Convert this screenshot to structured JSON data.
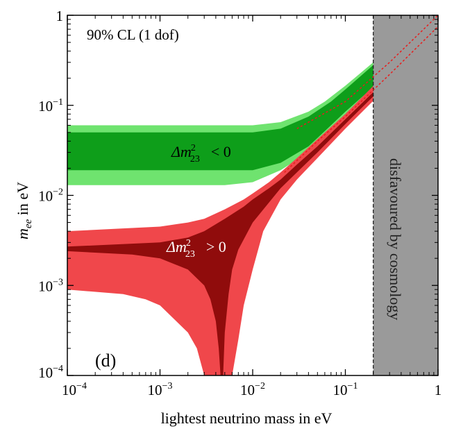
{
  "chart_data": {
    "type": "area",
    "panel_label": "(d)",
    "confidence_note": "90% CL (1 dof)",
    "xlabel": "lightest neutrino mass in eV",
    "ylabel": {
      "symbol": "m",
      "subscript": "ee",
      "suffix": " in eV"
    },
    "x_scale": "log",
    "y_scale": "log",
    "xlim": [
      0.0001,
      1
    ],
    "ylim": [
      0.0001,
      1
    ],
    "x_ticks": [
      {
        "value": 0.0001,
        "base": "10",
        "exp": "−4"
      },
      {
        "value": 0.001,
        "base": "10",
        "exp": "−3"
      },
      {
        "value": 0.01,
        "base": "10",
        "exp": "−2"
      },
      {
        "value": 0.1,
        "base": "10",
        "exp": "−1"
      },
      {
        "value": 1,
        "base": "1",
        "exp": ""
      }
    ],
    "y_ticks": [
      {
        "value": 0.0001,
        "base": "10",
        "exp": "−4"
      },
      {
        "value": 0.001,
        "base": "10",
        "exp": "−3"
      },
      {
        "value": 0.01,
        "base": "10",
        "exp": "−2"
      },
      {
        "value": 0.1,
        "base": "10",
        "exp": "−1"
      },
      {
        "value": 1,
        "base": "1",
        "exp": ""
      }
    ],
    "colors": {
      "inverted_outer": "#6fe36f",
      "inverted_inner": "#0e9e1a",
      "normal_outer": "#f0474b",
      "normal_inner": "#900c0c",
      "disfavoured": "#9a9a9a",
      "best_fit": "#e81c1c"
    },
    "regions": [
      {
        "name": "inverted-hierarchy-outer",
        "label": {
          "prefix": "Δm",
          "sup": "2",
          "sub": "23",
          "relation": "< 0"
        },
        "color_key": "inverted_outer",
        "upper": [
          [
            0.0001,
            0.06
          ],
          [
            0.01,
            0.06
          ],
          [
            0.02,
            0.065
          ],
          [
            0.04,
            0.085
          ],
          [
            0.06,
            0.11
          ],
          [
            0.1,
            0.165
          ],
          [
            0.2,
            0.3
          ],
          [
            0.4,
            0.55
          ],
          [
            0.7,
            0.8
          ],
          [
            1,
            1
          ]
        ],
        "lower": [
          [
            0.0001,
            0.013
          ],
          [
            0.005,
            0.013
          ],
          [
            0.01,
            0.014
          ],
          [
            0.02,
            0.019
          ],
          [
            0.04,
            0.03
          ],
          [
            0.07,
            0.05
          ],
          [
            0.1,
            0.07
          ],
          [
            0.2,
            0.13
          ],
          [
            0.5,
            0.3
          ],
          [
            1,
            0.55
          ]
        ]
      },
      {
        "name": "inverted-hierarchy-inner",
        "label": null,
        "color_key": "inverted_inner",
        "upper": [
          [
            0.0001,
            0.05
          ],
          [
            0.01,
            0.05
          ],
          [
            0.02,
            0.055
          ],
          [
            0.04,
            0.075
          ],
          [
            0.07,
            0.11
          ],
          [
            0.1,
            0.15
          ],
          [
            0.2,
            0.28
          ],
          [
            0.4,
            0.5
          ],
          [
            0.7,
            0.75
          ],
          [
            1,
            0.95
          ]
        ],
        "lower": [
          [
            0.0001,
            0.019
          ],
          [
            0.01,
            0.019
          ],
          [
            0.02,
            0.023
          ],
          [
            0.04,
            0.035
          ],
          [
            0.07,
            0.06
          ],
          [
            0.1,
            0.085
          ],
          [
            0.2,
            0.16
          ],
          [
            0.5,
            0.38
          ],
          [
            1,
            0.7
          ]
        ]
      },
      {
        "name": "normal-hierarchy-outer",
        "label": {
          "prefix": "Δm",
          "sup": "2",
          "sub": "23",
          "relation": "> 0"
        },
        "color_key": "normal_outer",
        "upper": [
          [
            0.0001,
            0.004
          ],
          [
            0.001,
            0.0045
          ],
          [
            0.002,
            0.005
          ],
          [
            0.003,
            0.0055
          ],
          [
            0.005,
            0.007
          ],
          [
            0.008,
            0.009
          ],
          [
            0.01,
            0.0105
          ],
          [
            0.015,
            0.014
          ],
          [
            0.02,
            0.018
          ],
          [
            0.03,
            0.026
          ],
          [
            0.05,
            0.042
          ],
          [
            0.1,
            0.08
          ],
          [
            0.3,
            0.25
          ],
          [
            1,
            0.9
          ]
        ],
        "lower": [
          [
            0.0001,
            0.0009
          ],
          [
            0.0004,
            0.0008
          ],
          [
            0.0007,
            0.0007
          ],
          [
            0.001,
            0.0006
          ],
          [
            0.0015,
            0.0004
          ],
          [
            0.002,
            0.0003
          ],
          [
            0.0025,
            0.0002
          ],
          [
            0.003,
            0.0001
          ],
          [
            0.0038,
            0.0001
          ],
          [
            0.0045,
            0.0001
          ],
          [
            0.006,
            0.0001
          ],
          [
            0.007,
            0.00025
          ],
          [
            0.008,
            0.0006
          ],
          [
            0.01,
            0.0015
          ],
          [
            0.013,
            0.004
          ],
          [
            0.02,
            0.009
          ],
          [
            0.03,
            0.015
          ],
          [
            0.05,
            0.026
          ],
          [
            0.1,
            0.055
          ],
          [
            0.3,
            0.17
          ],
          [
            1,
            0.58
          ]
        ]
      },
      {
        "name": "normal-hierarchy-inner",
        "label": null,
        "color_key": "normal_inner",
        "upper": [
          [
            0.0001,
            0.0027
          ],
          [
            0.001,
            0.003
          ],
          [
            0.002,
            0.0034
          ],
          [
            0.003,
            0.004
          ],
          [
            0.005,
            0.0055
          ],
          [
            0.008,
            0.0075
          ],
          [
            0.01,
            0.009
          ],
          [
            0.015,
            0.012
          ],
          [
            0.02,
            0.015
          ],
          [
            0.03,
            0.022
          ],
          [
            0.05,
            0.035
          ],
          [
            0.1,
            0.07
          ],
          [
            0.3,
            0.21
          ],
          [
            1,
            0.75
          ]
        ],
        "lower": [
          [
            0.0001,
            0.0024
          ],
          [
            0.0005,
            0.0022
          ],
          [
            0.001,
            0.002
          ],
          [
            0.002,
            0.0015
          ],
          [
            0.003,
            0.001
          ],
          [
            0.0035,
            0.0007
          ],
          [
            0.004,
            0.0004
          ],
          [
            0.0043,
            0.0002
          ],
          [
            0.0045,
            0.0001
          ],
          [
            0.0048,
            0.0001
          ],
          [
            0.005,
            0.0003
          ],
          [
            0.0055,
            0.0008
          ],
          [
            0.006,
            0.0015
          ],
          [
            0.007,
            0.0025
          ],
          [
            0.01,
            0.005
          ],
          [
            0.02,
            0.012
          ],
          [
            0.05,
            0.03
          ],
          [
            0.1,
            0.062
          ],
          [
            0.3,
            0.19
          ],
          [
            1,
            0.68
          ]
        ]
      }
    ],
    "best_fit_lines": [
      {
        "name": "best-fit-line-upper",
        "points": [
          [
            0.03,
            0.055
          ],
          [
            0.1,
            0.11
          ],
          [
            0.3,
            0.3
          ],
          [
            1,
            1
          ]
        ]
      },
      {
        "name": "best-fit-line-lower",
        "points": [
          [
            0.022,
            0.018
          ],
          [
            0.05,
            0.04
          ],
          [
            0.1,
            0.075
          ],
          [
            0.3,
            0.22
          ],
          [
            1,
            0.75
          ]
        ]
      }
    ],
    "disfavoured_region": {
      "x_from": 0.2,
      "x_to": 1,
      "label": "disfavoured by cosmology"
    }
  }
}
